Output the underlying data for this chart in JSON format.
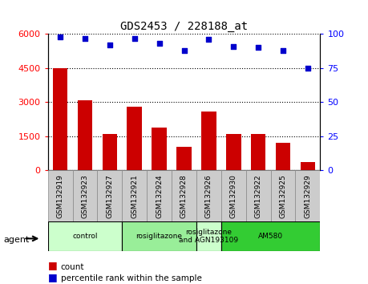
{
  "title": "GDS2453 / 228188_at",
  "samples": [
    "GSM132919",
    "GSM132923",
    "GSM132927",
    "GSM132921",
    "GSM132924",
    "GSM132928",
    "GSM132926",
    "GSM132930",
    "GSM132922",
    "GSM132925",
    "GSM132929"
  ],
  "counts": [
    4500,
    3100,
    1600,
    2800,
    1900,
    1050,
    2600,
    1600,
    1600,
    1200,
    350
  ],
  "percentiles": [
    98,
    97,
    92,
    97,
    93,
    88,
    96,
    91,
    90,
    88,
    75
  ],
  "bar_color": "#cc0000",
  "dot_color": "#0000cc",
  "ylim_left": [
    0,
    6000
  ],
  "ylim_right": [
    0,
    100
  ],
  "yticks_left": [
    0,
    1500,
    3000,
    4500,
    6000
  ],
  "yticks_right": [
    0,
    25,
    50,
    75,
    100
  ],
  "groups": [
    {
      "label": "control",
      "start": 0,
      "end": 3,
      "color": "#ccffcc"
    },
    {
      "label": "rosiglitazone",
      "start": 3,
      "end": 6,
      "color": "#99ee99"
    },
    {
      "label": "rosiglitazone\nand AGN193109",
      "start": 6,
      "end": 7,
      "color": "#ccffcc"
    },
    {
      "label": "AM580",
      "start": 7,
      "end": 11,
      "color": "#33cc33"
    }
  ],
  "agent_label": "agent",
  "legend_count_label": "count",
  "legend_pct_label": "percentile rank within the sample",
  "grid_color": "#000000",
  "bg_color": "#ffffff",
  "tick_area_color": "#cccccc"
}
